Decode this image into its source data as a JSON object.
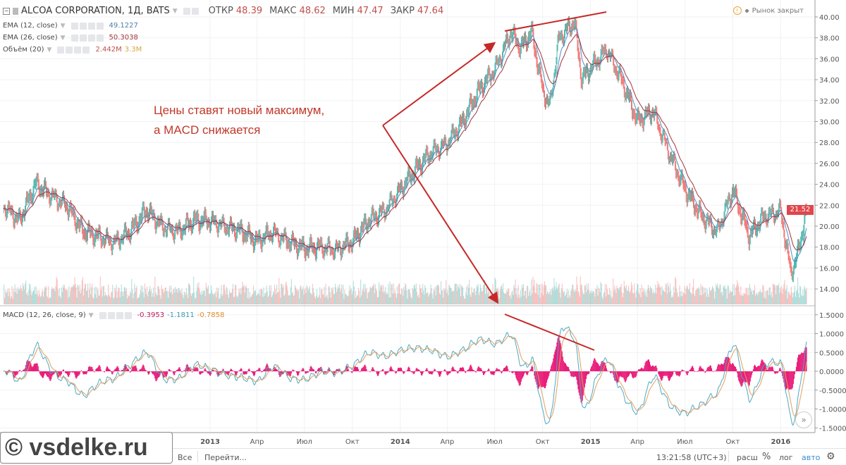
{
  "header": {
    "symbol": "ALCOA CORPORATION, 1Д, BATS",
    "ohlc": [
      {
        "label": "ОТКР",
        "value": "48.39"
      },
      {
        "label": "МАКС",
        "value": "48.62"
      },
      {
        "label": "МИН",
        "value": "47.47"
      },
      {
        "label": "ЗАКР",
        "value": "47.64"
      }
    ],
    "market_status": "Рынок закрыт",
    "status_icon_text": "!"
  },
  "indicators": {
    "ema12": {
      "label": "EMA (12, close)",
      "value": "49.1227",
      "color": "#4a90c8"
    },
    "ema26": {
      "label": "EMA (26, close)",
      "value": "50.3038",
      "color": "#a0343c"
    },
    "volume": {
      "label": "Объём (20)",
      "value": "2.442M",
      "ma_value": "3.3M"
    },
    "macd": {
      "label": "MACD (12, 26, close, 9)",
      "hist": "-0.3953",
      "macd": "-1.1811",
      "signal": "-0.7858"
    }
  },
  "annotation": {
    "line1": "Цены ставят новый максимум,",
    "line2": "а MACD снижается",
    "color": "#c0392b"
  },
  "last_price": "21.52",
  "colors": {
    "up": "#26a69a",
    "down": "#ef5350",
    "histogram": "#e91e7a",
    "macd_line": "#4fa8c5",
    "signal_line": "#e0a060"
  },
  "chart_data": [
    {
      "type": "candlestick",
      "title": "ALCOA CORPORATION, 1Д, BATS",
      "y_ticks": [
        "14.00",
        "16.00",
        "18.00",
        "20.00",
        "22.00",
        "24.00",
        "26.00",
        "28.00",
        "30.00",
        "32.00",
        "34.00",
        "36.00",
        "38.00",
        "40.00"
      ],
      "ylim": [
        13,
        40.5
      ],
      "x_ticks": [
        "2013",
        "Апр",
        "Июл",
        "Окт",
        "2014",
        "Апр",
        "Июл",
        "Окт",
        "2015",
        "Апр",
        "Июл",
        "Окт",
        "2016"
      ],
      "series": {
        "dates": [
          "2011-12-01",
          "2012-01-01",
          "2012-02-01",
          "2012-03-01",
          "2012-04-01",
          "2012-05-01",
          "2012-06-01",
          "2012-07-01",
          "2012-08-01",
          "2012-09-01",
          "2012-10-01",
          "2012-11-01",
          "2012-12-01",
          "2013-01-01",
          "2013-02-01",
          "2013-03-01",
          "2013-04-01",
          "2013-05-01",
          "2013-06-01",
          "2013-07-01",
          "2013-08-01",
          "2013-09-01",
          "2013-10-01",
          "2013-11-01",
          "2013-12-01",
          "2014-01-01",
          "2014-02-01",
          "2014-03-01",
          "2014-04-01",
          "2014-05-01",
          "2014-06-01",
          "2014-07-01",
          "2014-08-01",
          "2014-08-20",
          "2014-09-10",
          "2014-10-01",
          "2014-10-15",
          "2014-11-01",
          "2014-12-01",
          "2014-12-15",
          "2015-01-01",
          "2015-02-01",
          "2015-03-01",
          "2015-04-01",
          "2015-05-01",
          "2015-06-01",
          "2015-07-01",
          "2015-08-01",
          "2015-09-01",
          "2015-10-01",
          "2015-11-01",
          "2015-12-01",
          "2016-01-01",
          "2016-01-20",
          "2016-02-01",
          "2016-02-20"
        ],
        "close": [
          22,
          20.5,
          24,
          23,
          22,
          19.5,
          19,
          18.5,
          19.5,
          21.5,
          20,
          19.5,
          20.5,
          20.5,
          20,
          19.5,
          18.5,
          19.5,
          18.5,
          17.8,
          18,
          17.8,
          18.5,
          20.5,
          21.5,
          23.5,
          25.5,
          27,
          28,
          30,
          33,
          35,
          38.5,
          37,
          38.5,
          33,
          31.5,
          38,
          39.5,
          34,
          35,
          37,
          34,
          30,
          31,
          27,
          23.5,
          21,
          19.5,
          23.5,
          19,
          21,
          21.5,
          15.5,
          17,
          21.5
        ]
      }
    },
    {
      "type": "line",
      "title": "MACD (12, 26, close, 9)",
      "y_ticks": [
        "1.5000",
        "1.0000",
        "0.5000",
        "0.0000",
        "-0.5000",
        "-1.0000",
        "-1.5000"
      ],
      "ylim": [
        -1.65,
        1.65
      ]
    }
  ],
  "toolbar": {
    "all_label": "Все",
    "goto_label": "Перейти...",
    "time": "13:21:58 (UTC+3)",
    "ext": "расш",
    "percent": "%",
    "log": "лог",
    "auto": "авто"
  },
  "watermark": "© vsdelke.ru"
}
